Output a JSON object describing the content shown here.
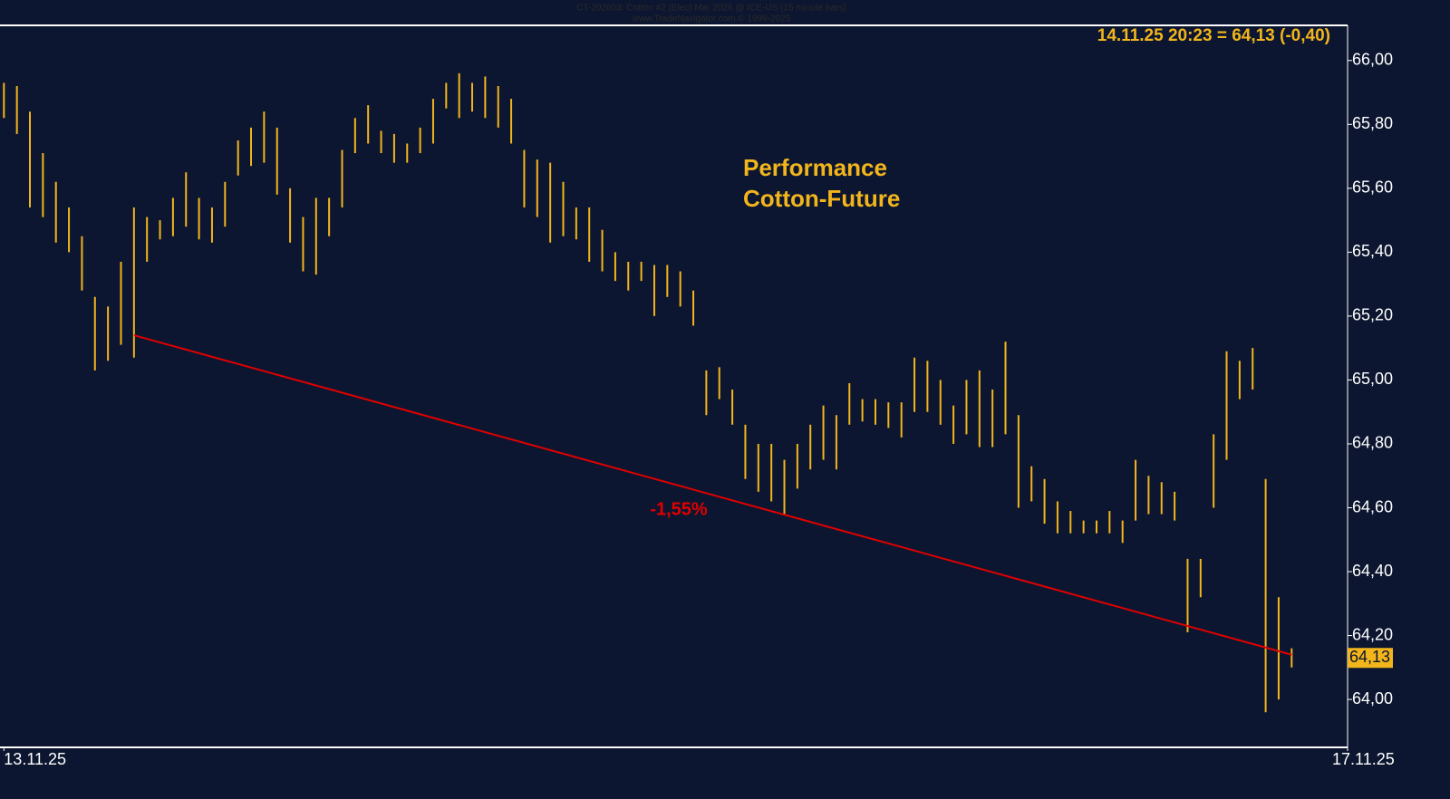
{
  "chart_data": {
    "type": "ohlc",
    "title": "CT-202603:  Cotton #2 (Elec) Mar 2026 @ ICE-US  (15 minute bars)",
    "subtitle": "www.TradeNavigator.com © 1999-2025",
    "last_quote": "14.11.25 20:23 = 64,13 (-0,40)",
    "annotation": "Performance\nCotton-Future",
    "color": "#f2b51c",
    "series": [
      {
        "name": "high",
        "values": [
          65.93,
          65.92,
          65.84,
          65.71,
          65.62,
          65.54,
          65.45,
          65.26,
          65.23,
          65.37,
          65.54,
          65.51,
          65.5,
          65.57,
          65.65,
          65.57,
          65.54,
          65.62,
          65.75,
          65.79,
          65.84,
          65.79,
          65.6,
          65.51,
          65.57,
          65.57,
          65.72,
          65.82,
          65.86,
          65.78,
          65.77,
          65.74,
          65.79,
          65.88,
          65.93,
          65.96,
          65.93,
          65.95,
          65.92,
          65.88,
          65.72,
          65.69,
          65.68,
          65.62,
          65.54,
          65.54,
          65.47,
          65.4,
          65.37,
          65.37,
          65.36,
          65.36,
          65.34,
          65.28,
          65.03,
          65.04,
          64.97,
          64.86,
          64.8,
          64.8,
          64.75,
          64.8,
          64.86,
          64.92,
          64.89,
          64.99,
          64.94,
          64.94,
          64.93,
          64.93,
          65.07,
          65.06,
          65.0,
          64.92,
          65.0,
          65.03,
          64.97,
          65.12,
          64.89,
          64.73,
          64.69,
          64.62,
          64.59,
          64.56,
          64.56,
          64.59,
          64.56,
          64.75,
          64.7,
          64.68,
          64.65,
          64.44,
          64.44,
          64.83,
          65.09,
          65.06,
          65.1,
          64.69,
          64.32,
          64.16
        ]
      },
      {
        "name": "low",
        "values": [
          65.82,
          65.77,
          65.54,
          65.51,
          65.43,
          65.4,
          65.28,
          65.03,
          65.06,
          65.11,
          65.07,
          65.37,
          65.44,
          65.45,
          65.48,
          65.44,
          65.43,
          65.48,
          65.64,
          65.67,
          65.68,
          65.58,
          65.43,
          65.34,
          65.33,
          65.45,
          65.54,
          65.71,
          65.74,
          65.71,
          65.68,
          65.68,
          65.71,
          65.74,
          65.85,
          65.82,
          65.84,
          65.82,
          65.79,
          65.74,
          65.54,
          65.51,
          65.43,
          65.45,
          65.44,
          65.37,
          65.34,
          65.31,
          65.28,
          65.31,
          65.2,
          65.26,
          65.23,
          65.17,
          64.89,
          64.94,
          64.86,
          64.69,
          64.65,
          64.62,
          64.58,
          64.66,
          64.72,
          64.75,
          64.72,
          64.86,
          64.87,
          64.86,
          64.85,
          64.82,
          64.9,
          64.9,
          64.86,
          64.8,
          64.83,
          64.79,
          64.79,
          64.83,
          64.6,
          64.62,
          64.55,
          64.52,
          64.52,
          64.52,
          64.52,
          64.52,
          64.49,
          64.56,
          64.58,
          64.58,
          64.56,
          64.21,
          64.32,
          64.6,
          64.75,
          64.94,
          64.97,
          63.96,
          64.0,
          64.1
        ]
      }
    ],
    "trend_line": {
      "x": [
        10,
        99
      ],
      "y": [
        65.14,
        64.14
      ],
      "color": "#e00000",
      "label": "-1,55%"
    },
    "last_price": {
      "value": 64.13,
      "label": "64,13"
    },
    "xlim": [
      -0.3,
      103.3
    ],
    "xticks": [
      {
        "value": 0,
        "label": "13.11.25"
      },
      {
        "value": 103.3,
        "label": "17.11.25"
      }
    ],
    "ylim": [
      63.85,
      66.11
    ],
    "yticks": [
      {
        "value": 64.0,
        "label": "64,00"
      },
      {
        "value": 64.2,
        "label": "64,20"
      },
      {
        "value": 64.4,
        "label": "64,40"
      },
      {
        "value": 64.6,
        "label": "64,60"
      },
      {
        "value": 64.8,
        "label": "64,80"
      },
      {
        "value": 65.0,
        "label": "65,00"
      },
      {
        "value": 65.2,
        "label": "65,20"
      },
      {
        "value": 65.4,
        "label": "65,40"
      },
      {
        "value": 65.6,
        "label": "65,60"
      },
      {
        "value": 65.8,
        "label": "65,80"
      },
      {
        "value": 66.0,
        "label": "66,00"
      }
    ]
  }
}
